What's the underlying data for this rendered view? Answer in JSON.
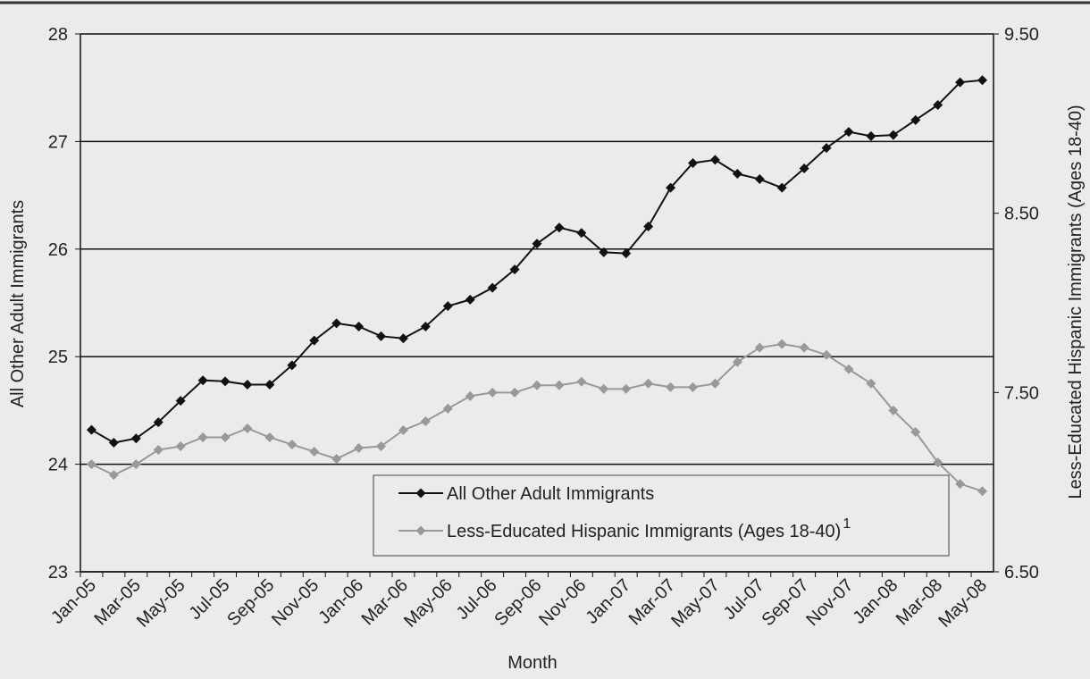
{
  "chart_data": {
    "type": "line",
    "x_label": "Month",
    "y_label": "All Other Adult Immigrants",
    "y2_label": "Less-Educated Hispanic Immigrants (Ages 18-40)",
    "categories": [
      "Jan-05",
      null,
      "Mar-05",
      null,
      "May-05",
      null,
      "Jul-05",
      null,
      "Sep-05",
      null,
      "Nov-05",
      null,
      "Jan-06",
      null,
      "Mar-06",
      null,
      "May-06",
      null,
      "Jul-06",
      null,
      "Sep-06",
      null,
      "Nov-06",
      null,
      "Jan-07",
      null,
      "Mar-07",
      null,
      "May-07",
      null,
      "Jul-07",
      null,
      "Sep-07",
      null,
      "Nov-07",
      null,
      "Jan-08",
      null,
      "Mar-08",
      null,
      "May-08"
    ],
    "ylim": [
      23,
      28
    ],
    "yticks": [
      23,
      24,
      25,
      26,
      27,
      28
    ],
    "y2lim": [
      6.5,
      9.5
    ],
    "y2ticks": [
      {
        "value": 6.5,
        "label": "6.50"
      },
      {
        "value": 7.5,
        "label": "7.50"
      },
      {
        "value": 8.5,
        "label": "8.50"
      },
      {
        "value": 9.5,
        "label": "9.50"
      }
    ],
    "grid": true,
    "legend": "lower right",
    "series": [
      {
        "name": "All Other Adult Immigrants",
        "color": "#111111",
        "values": [
          24.32,
          24.2,
          24.24,
          24.39,
          24.59,
          24.78,
          24.77,
          24.74,
          24.74,
          24.92,
          25.15,
          25.31,
          25.28,
          25.19,
          25.17,
          25.28,
          25.47,
          25.53,
          25.64,
          25.81,
          26.05,
          26.2,
          26.15,
          25.97,
          25.96,
          26.21,
          26.57,
          26.8,
          26.83,
          26.7,
          26.65,
          26.57,
          26.75,
          26.94,
          27.09,
          27.05,
          27.06,
          27.2,
          27.34,
          27.55,
          27.57
        ]
      },
      {
        "name": "Less-Educated Hispanic Immigrants (Ages 18-40)",
        "note": "1",
        "color": "#999999",
        "axis": "y2",
        "values": [
          7.1,
          7.04,
          7.1,
          7.18,
          7.2,
          7.25,
          7.25,
          7.3,
          7.25,
          7.21,
          7.17,
          7.13,
          7.19,
          7.2,
          7.29,
          7.34,
          7.41,
          7.48,
          7.5,
          7.5,
          7.54,
          7.54,
          7.56,
          7.52,
          7.52,
          7.55,
          7.53,
          7.53,
          7.55,
          7.67,
          7.75,
          7.77,
          7.75,
          7.71,
          7.63,
          7.55,
          7.4,
          7.28,
          7.11,
          6.99,
          6.95
        ]
      }
    ]
  }
}
